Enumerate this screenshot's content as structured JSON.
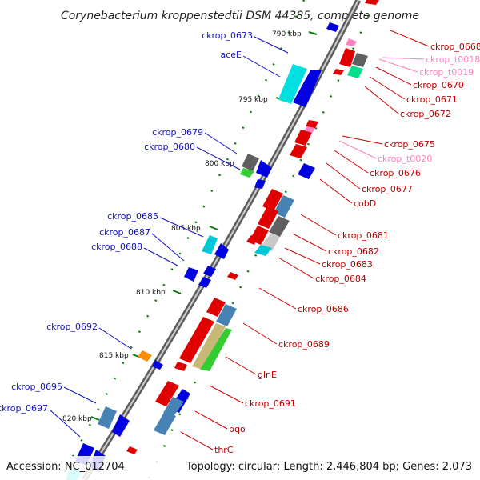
{
  "title": "Corynebacterium kroppenstedtii DSM 44385, complete genome",
  "accession": "Accession: NC_012704",
  "topology": "Topology: circular; Length: 2,446,804 bp; Genes: 2,073",
  "colors": {
    "forward_gene": "#0000e0",
    "reverse_gene": "#e00000",
    "rrna": "#00ffff",
    "hypothetical": "#4682b4",
    "trna": "#ff80c0",
    "backbone": "#808080",
    "gc_tick": "#008000"
  },
  "kbp_marks": [
    "790 kbp",
    "795 kbp",
    "800 kbp",
    "805 kbp",
    "810 kbp",
    "815 kbp",
    "820 kbp"
  ],
  "left_labels": [
    "ckrop_0673",
    "aceE",
    "ckrop_0679",
    "ckrop_0680",
    "ckrop_0685",
    "ckrop_0687",
    "ckrop_0688",
    "ckrop_0692",
    "ckrop_0695",
    "ckrop_0697"
  ],
  "right_labels": [
    "ckrop_0668",
    "ckrop_t0018",
    "ckrop_t0019",
    "ckrop_0670",
    "ckrop_0671",
    "ckrop_0672",
    "ckrop_0675",
    "ckrop_t0020",
    "ckrop_0676",
    "ckrop_0677",
    "cobD",
    "ckrop_0681",
    "ckrop_0682",
    "ckrop_0683",
    "ckrop_0684",
    "ckrop_0686",
    "ckrop_0689",
    "glnE",
    "ckrop_0691",
    "pqo",
    "thrC"
  ]
}
